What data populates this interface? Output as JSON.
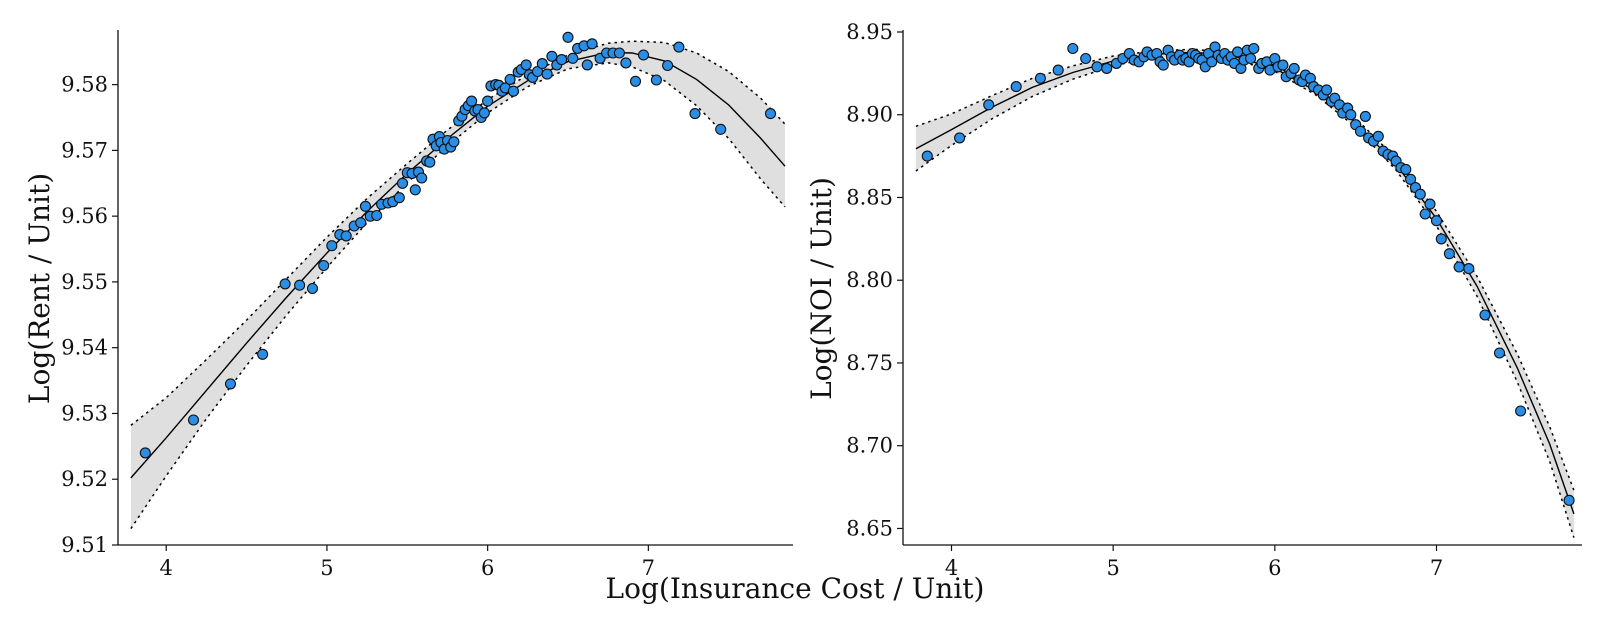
{
  "shared_xlabel": "Log(Insurance Cost / Unit)",
  "colors": {
    "points": "#2a8ee6",
    "band": "#dcdcdc",
    "line": "#000000"
  },
  "chart_data": [
    {
      "type": "scatter",
      "title": "",
      "xlabel": "Log(Insurance Cost / Unit)",
      "ylabel": "Log(Rent / Unit)",
      "xlim": [
        3.7,
        7.9
      ],
      "ylim": [
        9.51,
        9.588
      ],
      "xticks": [
        4,
        5,
        6,
        7
      ],
      "yticks": [
        9.51,
        9.52,
        9.53,
        9.54,
        9.55,
        9.56,
        9.57,
        9.58
      ],
      "ytick_labels": [
        "9.51",
        "9.52",
        "9.53",
        "9.54",
        "9.55",
        "9.56",
        "9.57",
        "9.58"
      ],
      "xtick_labels": [
        "4",
        "5",
        "6",
        "7"
      ],
      "fit": {
        "x": [
          3.78,
          4.0,
          4.25,
          4.5,
          4.75,
          5.0,
          5.25,
          5.5,
          5.75,
          6.0,
          6.25,
          6.5,
          6.75,
          6.9,
          7.1,
          7.3,
          7.5,
          7.7,
          7.85
        ],
        "y": [
          9.5202,
          9.5263,
          9.5335,
          9.5407,
          9.5477,
          9.5544,
          9.5607,
          9.5665,
          9.5718,
          9.5767,
          9.5806,
          9.5835,
          9.5849,
          9.5848,
          9.5836,
          9.5808,
          9.5769,
          9.5718,
          9.5676
        ],
        "lower": [
          9.5125,
          9.5205,
          9.5292,
          9.5373,
          9.545,
          9.5522,
          9.559,
          9.5651,
          9.5707,
          9.5757,
          9.5797,
          9.5824,
          9.5833,
          9.5827,
          9.5806,
          9.5768,
          9.5718,
          9.5656,
          9.5614
        ],
        "upper": [
          9.5282,
          9.5324,
          9.5382,
          9.5442,
          9.5505,
          9.5568,
          9.5627,
          9.568,
          9.5731,
          9.5777,
          9.5815,
          9.5845,
          9.5863,
          9.5866,
          9.5864,
          9.5848,
          9.582,
          9.5779,
          9.574
        ]
      },
      "points": [
        [
          3.87,
          9.524
        ],
        [
          4.17,
          9.529
        ],
        [
          4.4,
          9.5345
        ],
        [
          4.6,
          9.539
        ],
        [
          4.74,
          9.5497
        ],
        [
          4.83,
          9.5495
        ],
        [
          4.91,
          9.549
        ],
        [
          4.98,
          9.5525
        ],
        [
          5.03,
          9.5555
        ],
        [
          5.08,
          9.5572
        ],
        [
          5.12,
          9.557
        ],
        [
          5.17,
          9.5585
        ],
        [
          5.21,
          9.559
        ],
        [
          5.24,
          9.5615
        ],
        [
          5.27,
          9.56
        ],
        [
          5.31,
          9.5601
        ],
        [
          5.34,
          9.5618
        ],
        [
          5.38,
          9.562
        ],
        [
          5.41,
          9.5622
        ],
        [
          5.45,
          9.5628
        ],
        [
          5.47,
          9.565
        ],
        [
          5.5,
          9.5666
        ],
        [
          5.53,
          9.5665
        ],
        [
          5.55,
          9.564
        ],
        [
          5.57,
          9.5667
        ],
        [
          5.59,
          9.5658
        ],
        [
          5.62,
          9.5684
        ],
        [
          5.64,
          9.5682
        ],
        [
          5.66,
          9.5717
        ],
        [
          5.68,
          9.5707
        ],
        [
          5.7,
          9.5721
        ],
        [
          5.71,
          9.5712
        ],
        [
          5.73,
          9.5702
        ],
        [
          5.75,
          9.5715
        ],
        [
          5.77,
          9.5705
        ],
        [
          5.79,
          9.5713
        ],
        [
          5.82,
          9.5745
        ],
        [
          5.84,
          9.5752
        ],
        [
          5.86,
          9.5762
        ],
        [
          5.88,
          9.5768
        ],
        [
          5.9,
          9.5775
        ],
        [
          5.92,
          9.576
        ],
        [
          5.94,
          9.5762
        ],
        [
          5.96,
          9.575
        ],
        [
          5.98,
          9.5757
        ],
        [
          6.0,
          9.5775
        ],
        [
          6.02,
          9.5798
        ],
        [
          6.05,
          9.58
        ],
        [
          6.07,
          9.5799
        ],
        [
          6.09,
          9.579
        ],
        [
          6.11,
          9.5795
        ],
        [
          6.14,
          9.5808
        ],
        [
          6.16,
          9.579
        ],
        [
          6.19,
          9.5819
        ],
        [
          6.21,
          9.5823
        ],
        [
          6.24,
          9.583
        ],
        [
          6.26,
          9.5815
        ],
        [
          6.28,
          9.5811
        ],
        [
          6.31,
          9.582
        ],
        [
          6.34,
          9.5832
        ],
        [
          6.37,
          9.5816
        ],
        [
          6.4,
          9.5843
        ],
        [
          6.43,
          9.583
        ],
        [
          6.46,
          9.5838
        ],
        [
          6.5,
          9.5872
        ],
        [
          6.53,
          9.584
        ],
        [
          6.56,
          9.5855
        ],
        [
          6.6,
          9.5859
        ],
        [
          6.62,
          9.583
        ],
        [
          6.65,
          9.5862
        ],
        [
          6.7,
          9.584
        ],
        [
          6.74,
          9.5848
        ],
        [
          6.78,
          9.5848
        ],
        [
          6.82,
          9.5848
        ],
        [
          6.86,
          9.5833
        ],
        [
          6.92,
          9.5805
        ],
        [
          6.97,
          9.5845
        ],
        [
          7.05,
          9.5807
        ],
        [
          7.12,
          9.5829
        ],
        [
          7.19,
          9.5857
        ],
        [
          7.29,
          9.5756
        ],
        [
          7.45,
          9.5732
        ],
        [
          7.76,
          9.5756
        ]
      ]
    },
    {
      "type": "scatter",
      "title": "",
      "xlabel": "Log(Insurance Cost / Unit)",
      "ylabel": "Log(NOI / Unit)",
      "xlim": [
        3.7,
        7.9
      ],
      "ylim": [
        8.64,
        8.95
      ],
      "xticks": [
        4,
        5,
        6,
        7
      ],
      "yticks": [
        8.65,
        8.7,
        8.75,
        8.8,
        8.85,
        8.9,
        8.95
      ],
      "ytick_labels": [
        "8.65",
        "8.70",
        "8.75",
        "8.80",
        "8.85",
        "8.90",
        "8.95"
      ],
      "xtick_labels": [
        "4",
        "5",
        "6",
        "7"
      ],
      "fit": {
        "x": [
          3.78,
          4.0,
          4.25,
          4.5,
          4.75,
          5.0,
          5.25,
          5.5,
          5.75,
          6.0,
          6.25,
          6.5,
          6.75,
          7.0,
          7.25,
          7.5,
          7.7,
          7.85
        ],
        "y": [
          8.8795,
          8.891,
          8.9045,
          8.9165,
          8.9255,
          8.9325,
          8.9365,
          8.9378,
          8.9352,
          8.928,
          8.9145,
          8.8952,
          8.87,
          8.8372,
          8.7965,
          8.747,
          8.701,
          8.6588
        ],
        "lower": [
          8.866,
          8.8815,
          8.8975,
          8.911,
          8.9215,
          8.9295,
          8.9345,
          8.936,
          8.9333,
          8.9262,
          8.9122,
          8.8925,
          8.8665,
          8.8328,
          8.7905,
          8.7385,
          8.6905,
          8.6445
        ],
        "upper": [
          8.893,
          8.9005,
          8.9115,
          8.922,
          8.9295,
          8.9355,
          8.9385,
          8.9396,
          8.9371,
          8.9298,
          8.9168,
          8.8979,
          8.8735,
          8.8416,
          8.8025,
          8.7555,
          8.7115,
          8.6731
        ]
      },
      "points": [
        [
          3.85,
          8.875
        ],
        [
          4.05,
          8.886
        ],
        [
          4.23,
          8.906
        ],
        [
          4.4,
          8.917
        ],
        [
          4.55,
          8.922
        ],
        [
          4.66,
          8.927
        ],
        [
          4.75,
          8.94
        ],
        [
          4.83,
          8.934
        ],
        [
          4.9,
          8.929
        ],
        [
          4.96,
          8.928
        ],
        [
          5.02,
          8.931
        ],
        [
          5.06,
          8.934
        ],
        [
          5.1,
          8.937
        ],
        [
          5.13,
          8.933
        ],
        [
          5.16,
          8.932
        ],
        [
          5.19,
          8.935
        ],
        [
          5.21,
          8.938
        ],
        [
          5.24,
          8.936
        ],
        [
          5.27,
          8.937
        ],
        [
          5.29,
          8.932
        ],
        [
          5.31,
          8.93
        ],
        [
          5.34,
          8.939
        ],
        [
          5.36,
          8.935
        ],
        [
          5.38,
          8.933
        ],
        [
          5.41,
          8.936
        ],
        [
          5.43,
          8.933
        ],
        [
          5.45,
          8.934
        ],
        [
          5.47,
          8.932
        ],
        [
          5.49,
          8.937
        ],
        [
          5.51,
          8.936
        ],
        [
          5.53,
          8.934
        ],
        [
          5.55,
          8.933
        ],
        [
          5.57,
          8.929
        ],
        [
          5.59,
          8.937
        ],
        [
          5.61,
          8.932
        ],
        [
          5.63,
          8.941
        ],
        [
          5.65,
          8.936
        ],
        [
          5.67,
          8.934
        ],
        [
          5.69,
          8.937
        ],
        [
          5.71,
          8.933
        ],
        [
          5.73,
          8.935
        ],
        [
          5.75,
          8.931
        ],
        [
          5.77,
          8.938
        ],
        [
          5.79,
          8.928
        ],
        [
          5.81,
          8.933
        ],
        [
          5.83,
          8.939
        ],
        [
          5.85,
          8.934
        ],
        [
          5.87,
          8.94
        ],
        [
          5.9,
          8.928
        ],
        [
          5.92,
          8.931
        ],
        [
          5.95,
          8.932
        ],
        [
          5.97,
          8.927
        ],
        [
          6.0,
          8.934
        ],
        [
          6.02,
          8.929
        ],
        [
          6.05,
          8.93
        ],
        [
          6.07,
          8.923
        ],
        [
          6.1,
          8.925
        ],
        [
          6.12,
          8.928
        ],
        [
          6.15,
          8.921
        ],
        [
          6.17,
          8.92
        ],
        [
          6.19,
          8.924
        ],
        [
          6.22,
          8.922
        ],
        [
          6.24,
          8.917
        ],
        [
          6.27,
          8.915
        ],
        [
          6.3,
          8.912
        ],
        [
          6.32,
          8.915
        ],
        [
          6.35,
          8.908
        ],
        [
          6.37,
          8.91
        ],
        [
          6.4,
          8.906
        ],
        [
          6.42,
          8.901
        ],
        [
          6.45,
          8.904
        ],
        [
          6.47,
          8.9
        ],
        [
          6.5,
          8.894
        ],
        [
          6.53,
          8.89
        ],
        [
          6.56,
          8.899
        ],
        [
          6.58,
          8.886
        ],
        [
          6.61,
          8.884
        ],
        [
          6.64,
          8.887
        ],
        [
          6.67,
          8.878
        ],
        [
          6.7,
          8.876
        ],
        [
          6.73,
          8.875
        ],
        [
          6.75,
          8.872
        ],
        [
          6.78,
          8.868
        ],
        [
          6.81,
          8.867
        ],
        [
          6.84,
          8.861
        ],
        [
          6.87,
          8.856
        ],
        [
          6.9,
          8.852
        ],
        [
          6.93,
          8.84
        ],
        [
          6.96,
          8.846
        ],
        [
          7.0,
          8.836
        ],
        [
          7.03,
          8.825
        ],
        [
          7.08,
          8.816
        ],
        [
          7.14,
          8.808
        ],
        [
          7.2,
          8.807
        ],
        [
          7.3,
          8.779
        ],
        [
          7.39,
          8.756
        ],
        [
          7.52,
          8.721
        ],
        [
          7.82,
          8.667
        ]
      ]
    }
  ]
}
